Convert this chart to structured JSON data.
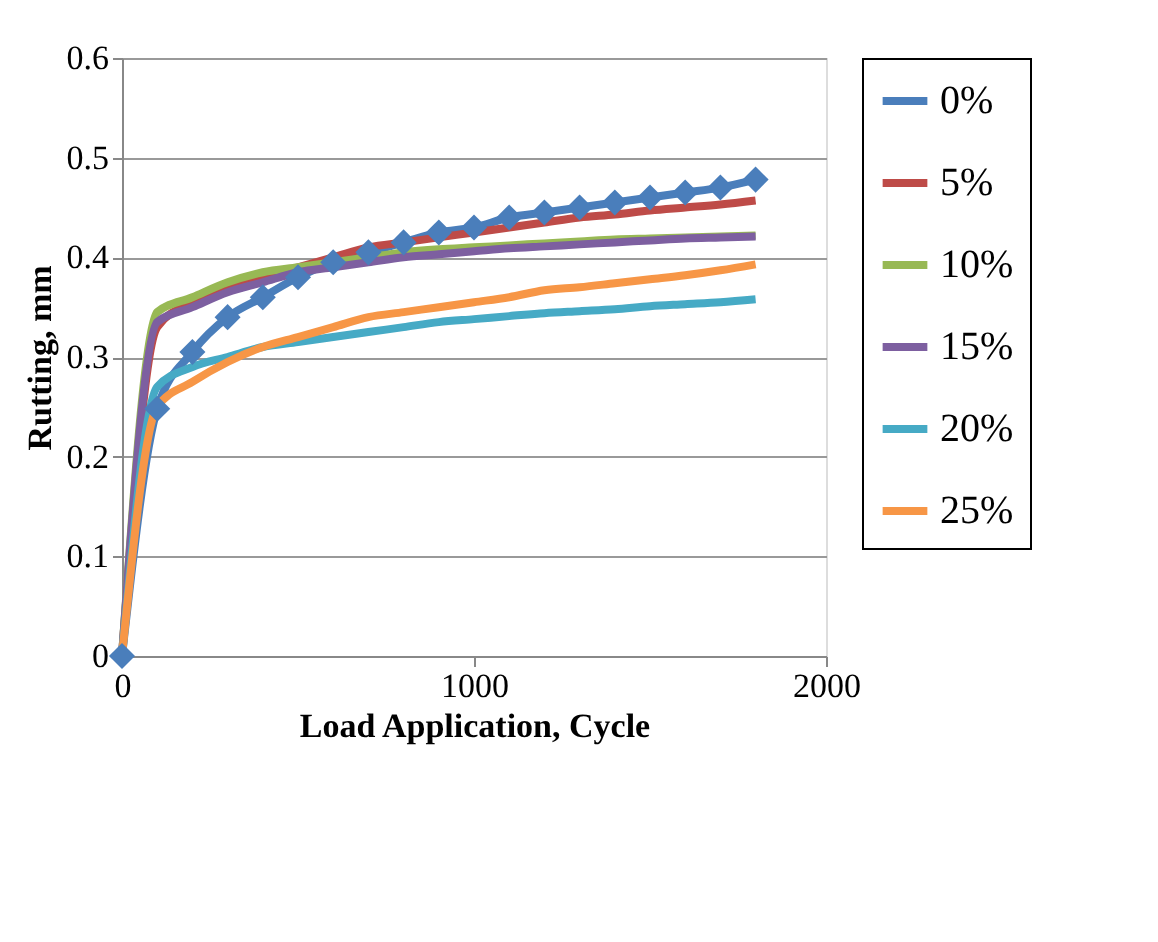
{
  "chart_data": {
    "type": "line",
    "xlabel": "Load Application, Cycle",
    "ylabel": "Rutting, mm",
    "x": [
      0,
      100,
      200,
      300,
      400,
      500,
      600,
      700,
      800,
      900,
      1000,
      1100,
      1200,
      1300,
      1400,
      1500,
      1600,
      1700,
      1800
    ],
    "series": [
      {
        "name": "0%",
        "color": "#4a7ebb",
        "marker": "diamond",
        "values": [
          0,
          0.248,
          0.305,
          0.34,
          0.36,
          0.38,
          0.395,
          0.405,
          0.415,
          0.425,
          0.43,
          0.44,
          0.445,
          0.45,
          0.455,
          0.46,
          0.465,
          0.47,
          0.478
        ]
      },
      {
        "name": "5%",
        "color": "#be4b48",
        "values": [
          0,
          0.33,
          0.355,
          0.37,
          0.38,
          0.39,
          0.4,
          0.41,
          0.415,
          0.42,
          0.425,
          0.43,
          0.435,
          0.44,
          0.443,
          0.447,
          0.45,
          0.453,
          0.457
        ]
      },
      {
        "name": "10%",
        "color": "#98b954",
        "values": [
          0,
          0.345,
          0.36,
          0.375,
          0.385,
          0.39,
          0.395,
          0.4,
          0.405,
          0.408,
          0.41,
          0.412,
          0.414,
          0.416,
          0.418,
          0.419,
          0.42,
          0.421,
          0.422
        ]
      },
      {
        "name": "15%",
        "color": "#7d5fa0",
        "values": [
          0,
          0.335,
          0.35,
          0.365,
          0.375,
          0.385,
          0.39,
          0.395,
          0.4,
          0.403,
          0.406,
          0.409,
          0.411,
          0.413,
          0.415,
          0.417,
          0.419,
          0.42,
          0.421
        ]
      },
      {
        "name": "20%",
        "color": "#46aac5",
        "values": [
          0,
          0.27,
          0.29,
          0.3,
          0.31,
          0.315,
          0.32,
          0.325,
          0.33,
          0.335,
          0.338,
          0.341,
          0.344,
          0.346,
          0.348,
          0.351,
          0.353,
          0.355,
          0.358
        ]
      },
      {
        "name": "25%",
        "color": "#f79646",
        "values": [
          0,
          0.25,
          0.275,
          0.295,
          0.31,
          0.32,
          0.33,
          0.34,
          0.345,
          0.35,
          0.355,
          0.36,
          0.367,
          0.37,
          0.374,
          0.378,
          0.382,
          0.387,
          0.393
        ]
      }
    ],
    "xlim": [
      0,
      2000
    ],
    "xticks": [
      0,
      1000,
      2000
    ],
    "ylim": [
      0,
      0.6
    ],
    "yticks": [
      0,
      0.1,
      0.2,
      0.3,
      0.4,
      0.5,
      0.6
    ],
    "grid": "y",
    "legend": "right",
    "line_style": "solid"
  }
}
